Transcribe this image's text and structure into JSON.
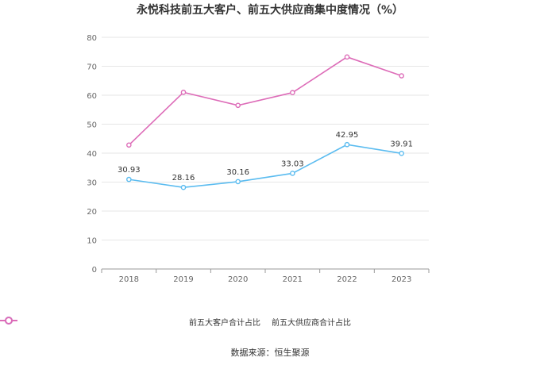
{
  "chart_data": {
    "type": "line",
    "title": "永悦科技前五大客户、前五大供应商集中度情况（%）",
    "xlabel": "",
    "ylabel": "",
    "categories": [
      "2018",
      "2019",
      "2020",
      "2021",
      "2022",
      "2023"
    ],
    "ylim": [
      0,
      80
    ],
    "yticks": [
      0,
      10,
      20,
      30,
      40,
      50,
      60,
      70,
      80
    ],
    "grid": true,
    "legend_position": "bottom-center",
    "series": [
      {
        "name": "前五大客户合计占比",
        "color": "#5bbcf0",
        "values": [
          30.93,
          28.16,
          30.16,
          33.03,
          42.95,
          39.91
        ],
        "show_labels": true
      },
      {
        "name": "前五大供应商合计占比",
        "color": "#dd6cb8",
        "values": [
          42.8,
          61.0,
          56.5,
          60.9,
          73.2,
          66.7
        ],
        "show_labels": false
      }
    ]
  },
  "source": "数据来源：恒生聚源"
}
